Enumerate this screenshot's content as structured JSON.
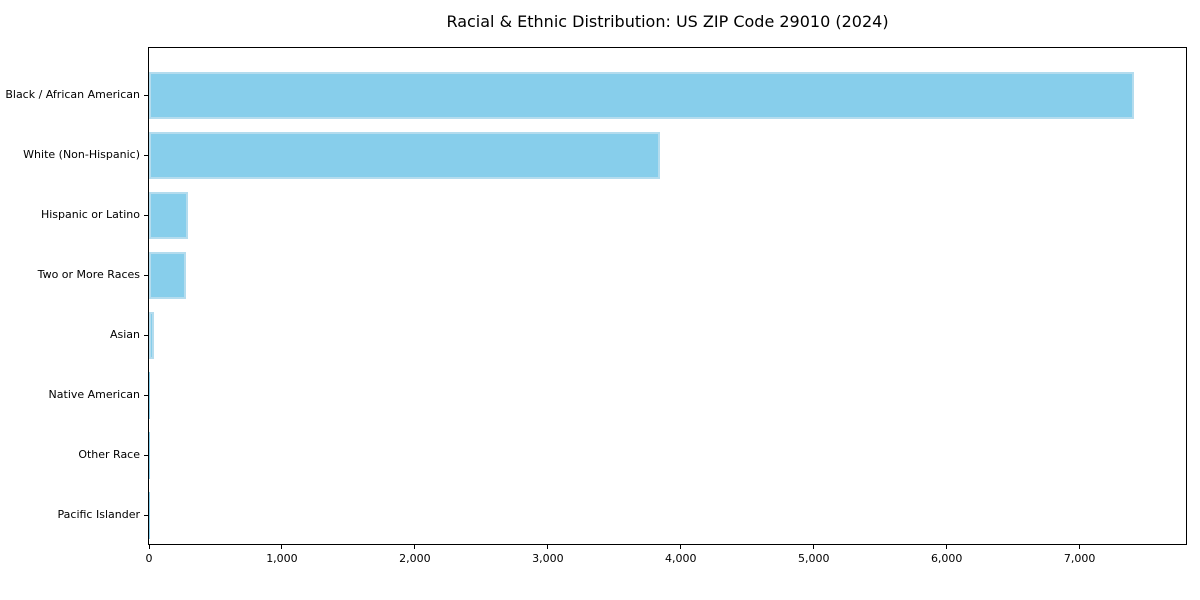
{
  "figure": {
    "background": "#ffffff"
  },
  "chart_data": {
    "type": "bar",
    "orientation": "horizontal",
    "title": "Racial & Ethnic Distribution: US ZIP Code 29010 (2024)",
    "categories": [
      "Black / African American",
      "White (Non-Hispanic)",
      "Hispanic or Latino",
      "Two or More Races",
      "Asian",
      "Native American",
      "Other Race",
      "Pacific Islander"
    ],
    "values": [
      7410,
      3840,
      290,
      280,
      37,
      8,
      3,
      1
    ],
    "xlabel": "",
    "ylabel": "",
    "xlim": [
      0,
      7800
    ],
    "xticks": [
      0,
      1000,
      2000,
      3000,
      4000,
      5000,
      6000,
      7000
    ],
    "xtick_labels": [
      "0",
      "1,000",
      "2,000",
      "3,000",
      "4,000",
      "5,000",
      "6,000",
      "7,000"
    ],
    "grid": false,
    "legend": false,
    "bar_color": "#87ceeb",
    "bar_edge_color": "#b4dcee",
    "axis_color": "#000000",
    "text_color": "#000000"
  }
}
